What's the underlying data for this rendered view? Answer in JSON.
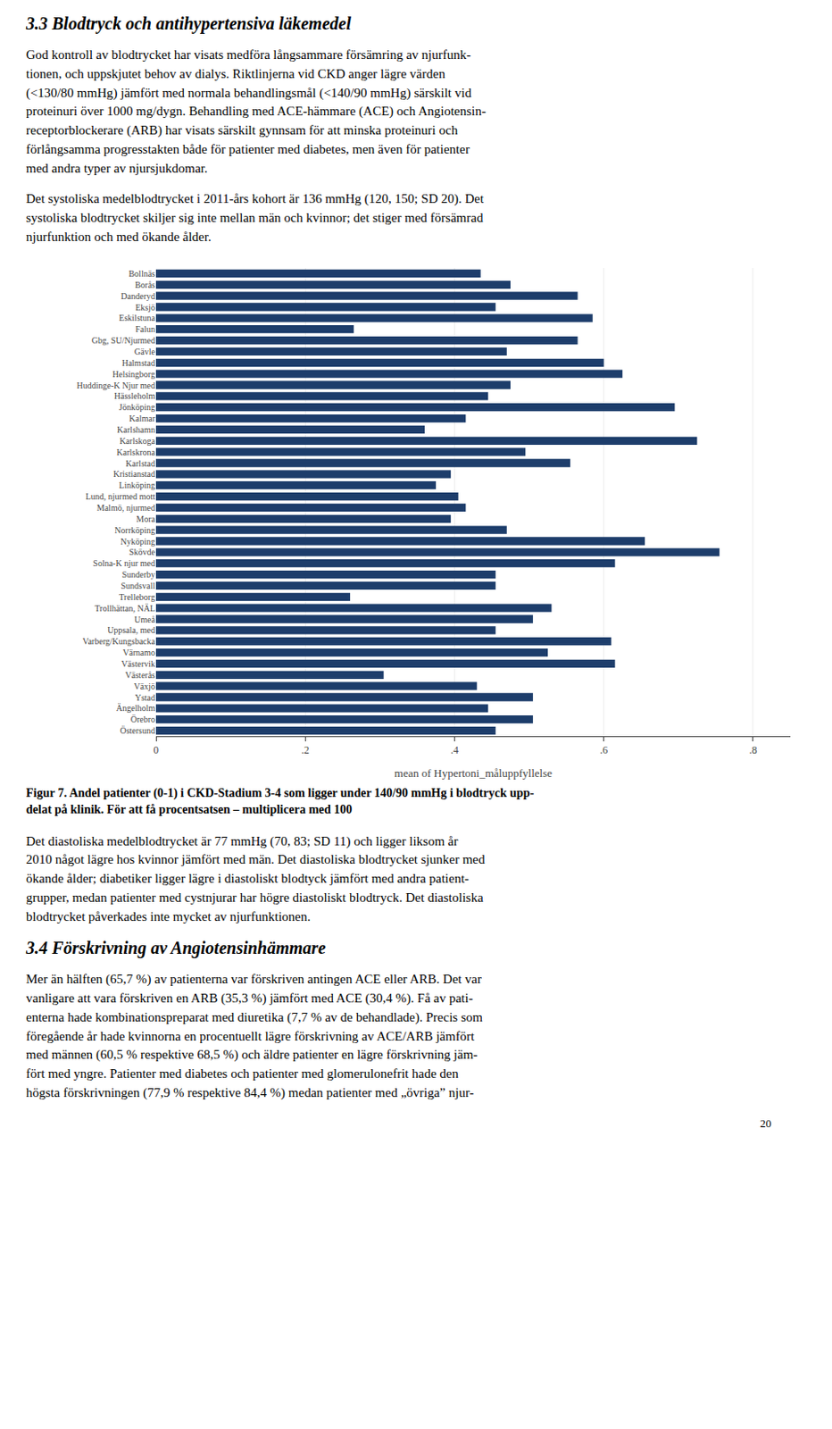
{
  "chart_data": {
    "type": "bar",
    "orientation": "horizontal",
    "title": "Figur 7. Andel patienter (0-1) i CKD-Stadium 3-4 som ligger under 140/90 mmHg i blodtryck upp-\ndelat på klinik. För att få procentsatsen – multiplicera med 100",
    "annotations": [
      "3.3  Blodtryck och antihypertensiva läkemedel",
      "God kontroll av blodtrycket har visats medföra långsammare försämring av njurfunk-\ntionen, och uppskjutet behov av dialys. Riktlinjerna vid CKD anger lägre värden\n(<130/80 mmHg) jämfört med normala behandlingsmål (<140/90 mmHg) särskilt vid\nproteinuri över 1000 mg/dygn. Behandling med ACE-hämmare (ACE) och Angiotensin-\nreceptorblockerare (ARB) har visats särskilt gynnsam för att minska proteinuri och\nförlångsamma progresstakten både för patienter med diabetes, men även för patienter\nmed andra typer av njursjukdomar.",
      "Det systoliska medelblodtrycket i 2011-års kohort är 136 mmHg (120, 150; SD 20). Det\nsystoliska blodtrycket skiljer sig inte mellan män och kvinnor; det stiger med försämrad\nnjurfunktion och med ökande ålder.",
      "Det diastoliska medelblodtrycket är 77 mmHg (70, 83; SD 11) och ligger liksom år\n2010 något lägre hos kvinnor jämfört med män. Det diastoliska blodtrycket sjunker med\nökande ålder; diabetiker ligger lägre i diastoliskt blodtyck jämfört med andra patient-\ngrupper, medan patienter med cystnjurar har högre diastoliskt blodtryck. Det diastoliska\nblodtrycket påverkades inte mycket av njurfunktionen.",
      "3.4  Förskrivning av Angiotensinhämmare",
      "Mer än hälften (65,7 %) av patienterna var förskriven antingen ACE eller ARB. Det var\nvanligare att vara förskriven en ARB (35,3 %) jämfört med ACE (30,4 %). Få av pati-\nenterna hade kombinationspreparat med diuretika (7,7 % av de behandlade). Precis som\nföregående år hade kvinnorna en procentuellt lägre förskrivning av ACE/ARB jämfört\nmed männen (60,5 % respektive 68,5 %) och äldre patienter en lägre förskrivning jäm-\nfört med yngre. Patienter med diabetes och patienter med glomerulonefrit hade den\nhögsta förskrivningen (77,9 % respektive 84,4 %) medan patienter med „övriga” njur-",
      "20"
    ],
    "categories": [
      "Bollnäs",
      "Borås",
      "Danderyd",
      "Eksjö",
      "Eskilstuna",
      "Falun",
      "Gbg, SU/Njurmed",
      "Gävle",
      "Halmstad",
      "Helsingborg",
      "Huddinge-K Njur med",
      "Hässleholm",
      "Jönköping",
      "Kalmar",
      "Karlshamn",
      "Karlskoga",
      "Karlskrona",
      "Karlstad",
      "Kristianstad",
      "Linköping",
      "Lund, njurmed mott",
      "Malmö, njurmed",
      "Mora",
      "Norrköping",
      "Nyköping",
      "Skövde",
      "Solna-K njur med",
      "Sunderby",
      "Sundsvall",
      "Trelleborg",
      "Trollhättan, NÄL",
      "Umeå",
      "Uppsala, med",
      "Varberg/Kungsbacka",
      "Värnamo",
      "Västervik",
      "Västerås",
      "Växjö",
      "Ystad",
      "Ängelholm",
      "Örebro",
      "Östersund"
    ],
    "values": [
      0.435,
      0.475,
      0.565,
      0.455,
      0.585,
      0.265,
      0.565,
      0.47,
      0.6,
      0.625,
      0.475,
      0.445,
      0.695,
      0.415,
      0.36,
      0.725,
      0.495,
      0.555,
      0.395,
      0.375,
      0.405,
      0.415,
      0.395,
      0.47,
      0.655,
      0.755,
      0.615,
      0.455,
      0.455,
      0.26,
      0.53,
      0.505,
      0.455,
      0.61,
      0.525,
      0.615,
      0.305,
      0.43,
      0.505,
      0.445,
      0.505,
      0.455
    ],
    "color": "#1d3d6b",
    "xlabel": "mean of Hypertoni_måluppfyllelse",
    "xlim": [
      0,
      0.85
    ],
    "xticks": [
      0,
      {
        "value": 0.2,
        "label": ".2"
      },
      {
        "value": 0.4,
        "label": ".4"
      },
      {
        "value": 0.6,
        "label": ".6"
      },
      {
        "value": 0.8,
        "label": ".8"
      }
    ],
    "grid": true
  }
}
